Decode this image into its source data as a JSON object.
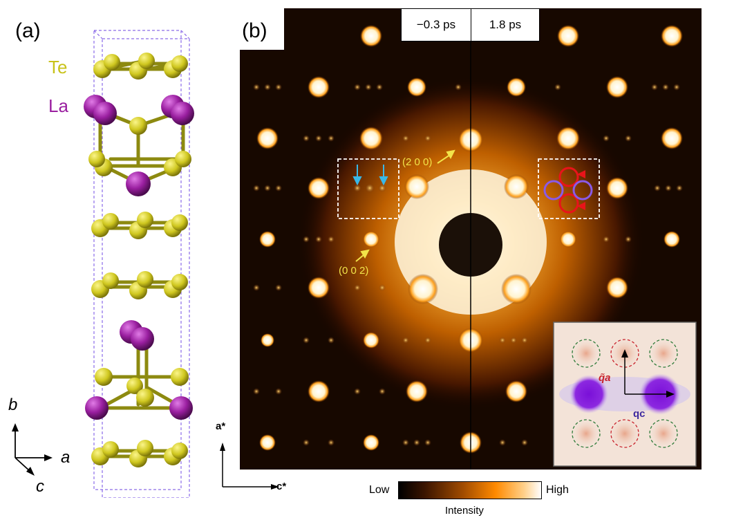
{
  "panel_a": {
    "label": "(a)",
    "elements": [
      {
        "symbol": "Te",
        "color": "#c8c21a"
      },
      {
        "symbol": "La",
        "color": "#9a1fa0"
      }
    ],
    "axes": {
      "b": "b",
      "a": "a",
      "c": "c"
    }
  },
  "panel_b": {
    "label": "(b)",
    "times": [
      "−0.3 ps",
      "1.8 ps"
    ],
    "reflections": {
      "r200": "(2 0 0)",
      "r002": "(0 0 2)"
    },
    "axes": {
      "a_star": "a*",
      "c_star": "c*"
    },
    "colorbar": {
      "low": "Low",
      "high": "High",
      "title": "Intensity"
    },
    "inset": {
      "qa": "q̃a",
      "qc": "qc"
    }
  }
}
